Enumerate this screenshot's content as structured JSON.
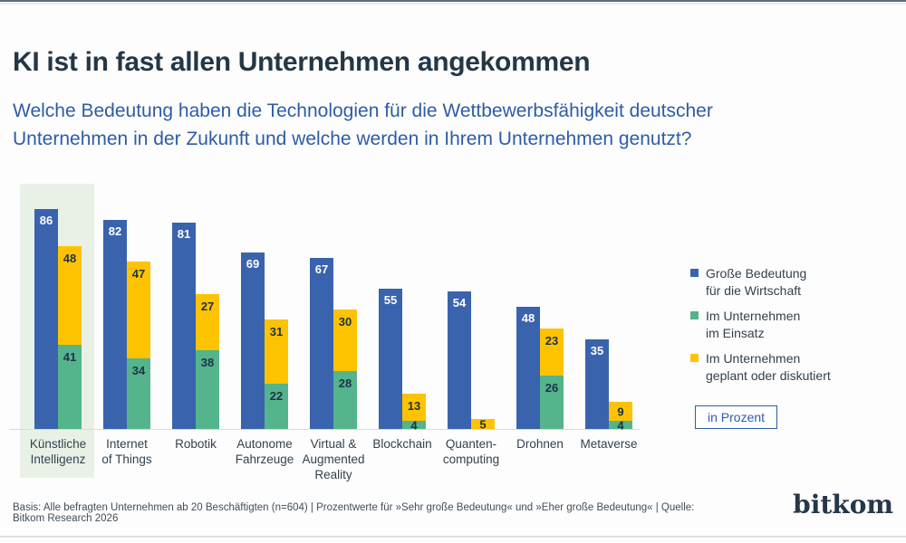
{
  "page": {
    "title": "KI ist in fast allen Unternehmen angekommen",
    "subtitle": "Welche Bedeutung haben die Technologien für die Wettbewerbsfähigkeit deutscher Unternehmen in der Zukunft und welche werden in Ihrem Unternehmen genutzt?",
    "unit_badge": "in Prozent",
    "footer": "Basis: Alle befragten Unternehmen ab 20 Beschäftigten (n=604) | Prozentwerte für »Sehr große Bedeutung« und »Eher große Bedeutung« | Quelle: Bitkom Research 2026",
    "brand": "bitkom"
  },
  "colors": {
    "blue": "#3a63ae",
    "green": "#54b48c",
    "yellow": "#fdc300",
    "highlight_band": "#e9f1e7",
    "title_text": "#243746",
    "accent_blue": "#2e5ca6",
    "dark_label": "#1e3248"
  },
  "chart_data": {
    "type": "bar",
    "title": "KI ist in fast allen Unternehmen angekommen",
    "unit": "Prozent",
    "categories": [
      "Künstliche Intelligenz",
      "Internet of Things",
      "Robotik",
      "Autonome Fahrzeuge",
      "Virtual & Augmented Reality",
      "Blockchain",
      "Quanten­computing",
      "Drohnen",
      "Metaverse"
    ],
    "category_label_lines": [
      [
        "Künstliche",
        "Intelligenz"
      ],
      [
        "Internet",
        "of Things"
      ],
      [
        "Robotik"
      ],
      [
        "Autonome",
        "Fahrzeuge"
      ],
      [
        "Virtual &",
        "Augmented",
        "Reality"
      ],
      [
        "Blockchain"
      ],
      [
        "Quanten-",
        "computing"
      ],
      [
        "Drohnen"
      ],
      [
        "Metaverse"
      ]
    ],
    "series": [
      {
        "name": "Große Bedeutung für die Wirtschaft",
        "color": "#3a63ae",
        "values": [
          86,
          82,
          81,
          69,
          67,
          55,
          54,
          48,
          35
        ]
      },
      {
        "name": "Im Unternehmen im Einsatz",
        "color": "#54b48c",
        "values": [
          41,
          34,
          38,
          22,
          28,
          4,
          null,
          26,
          4
        ]
      },
      {
        "name": "Im Unternehmen geplant oder diskutiert",
        "color": "#fdc300",
        "values": [
          48,
          47,
          27,
          31,
          30,
          13,
          5,
          23,
          9
        ]
      }
    ],
    "legend": [
      {
        "color": "#3a63ae",
        "lines": [
          "Große Bedeutung",
          "für die Wirtschaft"
        ]
      },
      {
        "color": "#54b48c",
        "lines": [
          "Im Unternehmen",
          "im Einsatz"
        ]
      },
      {
        "color": "#fdc300",
        "lines": [
          "Im Unternehmen",
          "geplant oder diskutiert"
        ]
      }
    ],
    "legend_position": "right",
    "highlighted_category": "Künstliche Intelligenz",
    "ylim": [
      0,
      100
    ],
    "grid": false
  }
}
